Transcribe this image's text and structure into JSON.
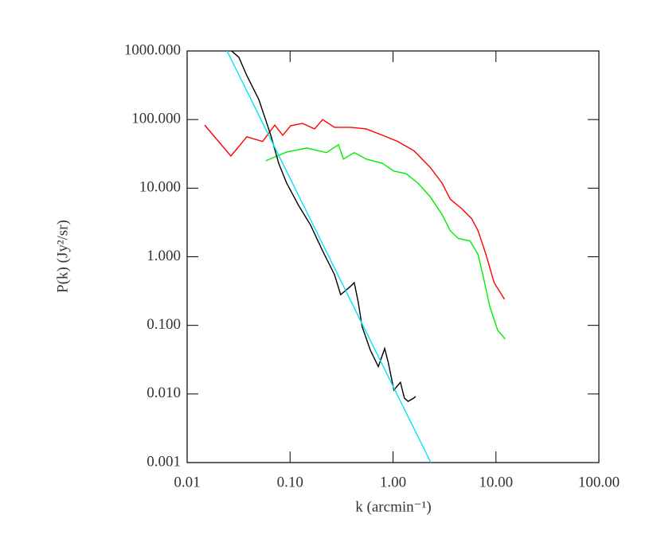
{
  "chart_data": {
    "type": "line",
    "x_label": "k (arcmin⁻¹)",
    "y_label": "P(k) (Jy²/sr)",
    "xscale": "log",
    "yscale": "log",
    "xlim": [
      0.01,
      100
    ],
    "ylim": [
      0.001,
      1000
    ],
    "xticks": [
      {
        "value": 0.01,
        "label": "0.01"
      },
      {
        "value": 0.1,
        "label": "0.10"
      },
      {
        "value": 1,
        "label": "1.00"
      },
      {
        "value": 10,
        "label": "10.00"
      },
      {
        "value": 100,
        "label": "100.00"
      }
    ],
    "yticks": [
      {
        "value": 0.001,
        "label": "0.001"
      },
      {
        "value": 0.01,
        "label": "0.010"
      },
      {
        "value": 0.1,
        "label": "0.100"
      },
      {
        "value": 1,
        "label": "1.000"
      },
      {
        "value": 10,
        "label": "10.000"
      },
      {
        "value": 100,
        "label": "100.000"
      },
      {
        "value": 1000,
        "label": "1000.000"
      }
    ],
    "series": [
      {
        "color": "#ff0000",
        "x": [
          0.0148,
          0.0266,
          0.038,
          0.054,
          0.071,
          0.085,
          0.101,
          0.132,
          0.173,
          0.207,
          0.27,
          0.386,
          0.55,
          0.79,
          1.11,
          1.6,
          2.3,
          3.0,
          3.6,
          4.66,
          5.8,
          6.7,
          8.0,
          9.6,
          12.1
        ],
        "values": [
          83,
          29.4,
          56,
          48,
          83,
          59,
          81,
          88,
          73,
          100,
          77,
          77,
          73,
          59,
          48,
          35,
          20,
          11.8,
          6.9,
          5.0,
          3.6,
          2.4,
          1.08,
          0.42,
          0.24
        ]
      },
      {
        "color": "#00ee00",
        "x": [
          0.058,
          0.092,
          0.145,
          0.225,
          0.295,
          0.33,
          0.42,
          0.55,
          0.79,
          1.02,
          1.34,
          1.75,
          2.3,
          3.0,
          3.6,
          4.3,
          5.6,
          6.7,
          7.6,
          8.7,
          10.4,
          12.3
        ],
        "values": [
          25,
          33.5,
          38.5,
          33,
          43,
          26.5,
          33,
          26.5,
          23,
          17.7,
          16.3,
          11.8,
          7.5,
          4.1,
          2.4,
          1.85,
          1.7,
          1.08,
          0.48,
          0.19,
          0.085,
          0.063
        ]
      },
      {
        "color": "#000000",
        "x": [
          0.027,
          0.0318,
          0.038,
          0.0497,
          0.065,
          0.0775,
          0.0925,
          0.121,
          0.158,
          0.207,
          0.27,
          0.31,
          0.386,
          0.42,
          0.46,
          0.5,
          0.6,
          0.72,
          0.83,
          0.9,
          1.02,
          1.18,
          1.29,
          1.4,
          1.59,
          1.66
        ],
        "values": [
          1000,
          808,
          437,
          196,
          59,
          23,
          11.9,
          5.6,
          2.9,
          1.22,
          0.55,
          0.28,
          0.37,
          0.42,
          0.216,
          0.097,
          0.044,
          0.025,
          0.046,
          0.0285,
          0.0114,
          0.0148,
          0.0087,
          0.0078,
          0.0087,
          0.0092
        ]
      },
      {
        "color": "#00e5ee",
        "x": [
          0.0244,
          2.33
        ],
        "values": [
          1000,
          0.001
        ]
      }
    ]
  }
}
